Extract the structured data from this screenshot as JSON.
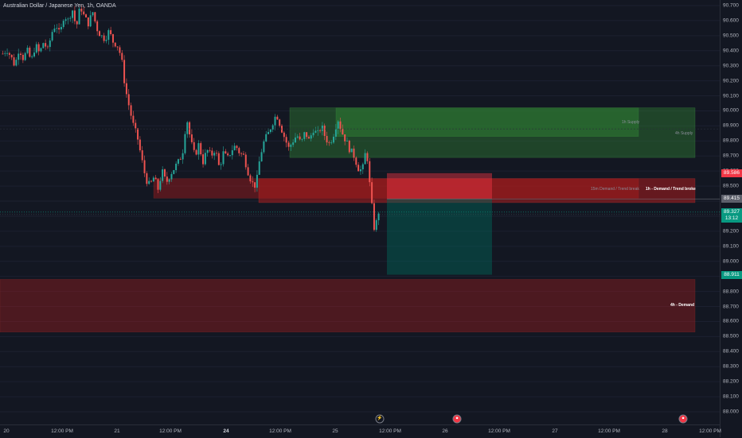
{
  "header": {
    "title": "Australian Dollar / Japanese Yen, 1h, OANDA"
  },
  "colors": {
    "background": "#131722",
    "up": "#26a69a",
    "down": "#ef5350",
    "supply_zone": "#2e7d32",
    "demand_zone": "#b71c1c",
    "target_zone": "#00695c"
  },
  "price_axis": {
    "ticks": [
      "90.700",
      "90.600",
      "90.500",
      "90.400",
      "90.300",
      "90.200",
      "90.100",
      "90.000",
      "89.900",
      "89.800",
      "89.700",
      "89.600",
      "89.500",
      "89.400",
      "89.300",
      "89.200",
      "89.100",
      "89.000",
      "88.900",
      "88.800",
      "88.700",
      "88.600",
      "88.500",
      "88.400",
      "88.300",
      "88.200",
      "88.100",
      "88.000"
    ],
    "badges": {
      "stop": {
        "value": "89.586",
        "color": "#f23645"
      },
      "entry": {
        "value": "89.415",
        "color": "#5d606b"
      },
      "last_price": {
        "value": "89.327",
        "countdown": "13:12",
        "color": "#089981"
      },
      "target": {
        "value": "88.911",
        "color": "#089981"
      }
    }
  },
  "time_axis": {
    "ticks": [
      {
        "label": "20",
        "bold": false
      },
      {
        "label": "12:00 PM",
        "bold": false
      },
      {
        "label": "21",
        "bold": false
      },
      {
        "label": "12:00 PM",
        "bold": false
      },
      {
        "label": "24",
        "bold": true
      },
      {
        "label": "12:00 PM",
        "bold": false
      },
      {
        "label": "25",
        "bold": false
      },
      {
        "label": "12:00 PM",
        "bold": false
      },
      {
        "label": "26",
        "bold": false
      },
      {
        "label": "12:00 PM",
        "bold": false
      },
      {
        "label": "27",
        "bold": false
      },
      {
        "label": "12:00 PM",
        "bold": false
      },
      {
        "label": "28",
        "bold": false
      },
      {
        "label": "12:00 PM",
        "bold": false
      }
    ]
  },
  "zones": {
    "supply_1h": "1h Supply",
    "supply_4h": "4h Supply",
    "demand_15m": "15m Demand / Trend break",
    "demand_1h": "1h - Demand / Trend broke",
    "demand_4h": "4h - Demand"
  },
  "events": [
    {
      "name": "flash",
      "glyph": "⚡"
    },
    {
      "name": "flag-a",
      "glyph": "●"
    },
    {
      "name": "flag-b",
      "glyph": "●"
    }
  ],
  "chart_data": {
    "type": "candlestick",
    "title": "Australian Dollar / Japanese Yen, 1h, OANDA",
    "ylim": [
      87.95,
      90.75
    ],
    "x_labels": [
      "20",
      "12:00 PM",
      "21",
      "12:00 PM",
      "24",
      "12:00 PM",
      "25",
      "12:00 PM",
      "26",
      "12:00 PM",
      "27",
      "12:00 PM",
      "28",
      "12:00 PM"
    ],
    "close_path": [
      90.38,
      90.41,
      90.36,
      90.3,
      90.42,
      90.35,
      90.4,
      90.33,
      90.44,
      90.38,
      90.46,
      90.4,
      90.52,
      90.58,
      90.5,
      90.64,
      90.6,
      90.68,
      90.55,
      90.7,
      90.62,
      90.58,
      90.66,
      90.55,
      90.5,
      90.48,
      90.53,
      90.46,
      90.44,
      90.36,
      90.15,
      90.02,
      89.9,
      89.82,
      89.68,
      89.55,
      89.5,
      89.56,
      89.48,
      89.6,
      89.52,
      89.58,
      89.62,
      89.66,
      89.72,
      89.96,
      89.8,
      89.7,
      89.78,
      89.66,
      89.74,
      89.7,
      89.75,
      89.62,
      89.72,
      89.68,
      89.74,
      89.77,
      89.72,
      89.7,
      89.6,
      89.52,
      89.5,
      89.7,
      89.8,
      89.85,
      89.92,
      89.98,
      89.9,
      89.82,
      89.75,
      89.8,
      89.84,
      89.78,
      89.86,
      89.8,
      89.88,
      89.84,
      89.9,
      89.82,
      89.78,
      89.85,
      89.95,
      89.86,
      89.8,
      89.74,
      89.7,
      89.62,
      89.6,
      89.76,
      89.45,
      89.2,
      89.33
    ],
    "zones": [
      {
        "label": "1h Supply",
        "top": 90.02,
        "bottom": 89.83,
        "kind": "supply"
      },
      {
        "label": "4h Supply",
        "top": 90.02,
        "bottom": 89.69,
        "kind": "supply"
      },
      {
        "label": "15m Demand / Trend Break",
        "top": 89.55,
        "bottom": 89.42,
        "kind": "demand"
      },
      {
        "label": "1h - Demand / Trend broke",
        "top": 89.55,
        "bottom": 89.39,
        "kind": "demand"
      },
      {
        "label": "4h - Demand",
        "top": 88.88,
        "bottom": 88.53,
        "kind": "demand"
      }
    ],
    "position": {
      "stop": 89.586,
      "entry": 89.415,
      "target": 88.911
    },
    "last_price": 89.327
  }
}
